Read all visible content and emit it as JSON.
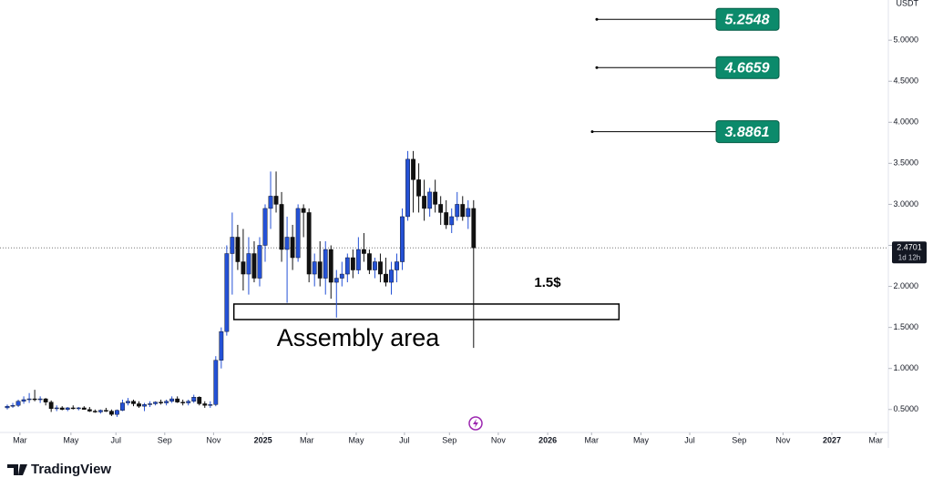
{
  "chart_data": {
    "type": "candlestick",
    "x": [
      0,
      1,
      2,
      3,
      4,
      5,
      6,
      7,
      8,
      9,
      10,
      11,
      12,
      13,
      14,
      15,
      16,
      17,
      18,
      19,
      20,
      21,
      22,
      23,
      24,
      25,
      26,
      27,
      28,
      29,
      30,
      31,
      32,
      33,
      34,
      35,
      36,
      37,
      38,
      39,
      40,
      41,
      42,
      43,
      44,
      45,
      46,
      47,
      48,
      49,
      50,
      51,
      52,
      53,
      54,
      55,
      56,
      57,
      58,
      59,
      60,
      61,
      62,
      63,
      64,
      65,
      66,
      67,
      68,
      69,
      70,
      71,
      72,
      73,
      74,
      75,
      76,
      77,
      78,
      79,
      80,
      81,
      82,
      83,
      84,
      85
    ],
    "open": [
      0.52,
      0.54,
      0.55,
      0.6,
      0.62,
      0.63,
      0.62,
      0.63,
      0.59,
      0.51,
      0.52,
      0.5,
      0.52,
      0.51,
      0.52,
      0.5,
      0.48,
      0.47,
      0.49,
      0.48,
      0.44,
      0.49,
      0.58,
      0.6,
      0.57,
      0.54,
      0.56,
      0.57,
      0.59,
      0.58,
      0.6,
      0.63,
      0.59,
      0.58,
      0.6,
      0.65,
      0.57,
      0.55,
      0.56,
      1.1,
      1.45,
      2.4,
      2.6,
      2.3,
      2.15,
      2.4,
      2.1,
      2.5,
      2.95,
      3.1,
      3.0,
      2.45,
      2.6,
      2.35,
      2.95,
      2.9,
      2.15,
      2.3,
      2.1,
      2.45,
      2.05,
      2.1,
      2.15,
      2.35,
      2.2,
      2.45,
      2.4,
      2.2,
      2.3,
      2.15,
      2.05,
      2.2,
      2.3,
      2.85,
      3.55,
      3.3,
      3.1,
      2.95,
      3.15,
      3.0,
      2.9,
      2.75,
      2.85,
      3.0,
      2.85,
      2.95
    ],
    "high": [
      0.56,
      0.58,
      0.62,
      0.66,
      0.7,
      0.74,
      0.66,
      0.64,
      0.61,
      0.55,
      0.54,
      0.53,
      0.55,
      0.53,
      0.54,
      0.53,
      0.5,
      0.5,
      0.52,
      0.5,
      0.5,
      0.62,
      0.64,
      0.62,
      0.6,
      0.58,
      0.6,
      0.6,
      0.62,
      0.62,
      0.66,
      0.66,
      0.62,
      0.62,
      0.68,
      0.66,
      0.6,
      0.6,
      1.15,
      1.5,
      2.5,
      2.9,
      2.75,
      2.7,
      2.6,
      2.55,
      2.6,
      3.0,
      3.4,
      3.4,
      3.15,
      2.85,
      2.75,
      3.0,
      3.0,
      2.95,
      2.4,
      2.55,
      2.55,
      2.5,
      2.2,
      2.3,
      2.4,
      2.45,
      2.6,
      2.65,
      2.45,
      2.35,
      2.4,
      2.35,
      2.3,
      2.4,
      2.95,
      3.65,
      3.65,
      3.5,
      3.3,
      3.2,
      3.3,
      3.1,
      3.05,
      2.95,
      3.15,
      3.1,
      3.05,
      3.05
    ],
    "low": [
      0.5,
      0.52,
      0.53,
      0.57,
      0.58,
      0.6,
      0.58,
      0.55,
      0.47,
      0.48,
      0.49,
      0.48,
      0.5,
      0.49,
      0.5,
      0.47,
      0.46,
      0.45,
      0.47,
      0.42,
      0.41,
      0.48,
      0.55,
      0.54,
      0.52,
      0.48,
      0.53,
      0.55,
      0.56,
      0.55,
      0.58,
      0.58,
      0.55,
      0.55,
      0.58,
      0.55,
      0.52,
      0.52,
      0.54,
      1.0,
      1.4,
      1.9,
      2.2,
      1.95,
      1.9,
      2.05,
      2.0,
      2.3,
      2.7,
      2.9,
      2.3,
      1.8,
      2.2,
      2.3,
      2.6,
      2.05,
      2.0,
      2.0,
      1.9,
      1.85,
      1.62,
      2.0,
      2.05,
      2.1,
      2.15,
      2.3,
      2.15,
      2.1,
      2.05,
      2.0,
      1.9,
      2.05,
      2.2,
      2.8,
      2.9,
      2.9,
      2.8,
      2.85,
      2.9,
      2.75,
      2.7,
      2.65,
      2.8,
      2.8,
      2.7,
      1.25
    ],
    "close": [
      0.54,
      0.55,
      0.6,
      0.62,
      0.63,
      0.62,
      0.63,
      0.59,
      0.51,
      0.52,
      0.5,
      0.52,
      0.51,
      0.52,
      0.5,
      0.48,
      0.47,
      0.49,
      0.48,
      0.44,
      0.49,
      0.58,
      0.6,
      0.57,
      0.54,
      0.56,
      0.57,
      0.59,
      0.58,
      0.6,
      0.63,
      0.59,
      0.58,
      0.6,
      0.65,
      0.57,
      0.55,
      0.56,
      1.1,
      1.45,
      2.4,
      2.6,
      2.3,
      2.15,
      2.4,
      2.1,
      2.5,
      2.95,
      3.1,
      3.0,
      2.45,
      2.6,
      2.35,
      2.95,
      2.9,
      2.15,
      2.3,
      2.1,
      2.45,
      2.05,
      2.1,
      2.15,
      2.35,
      2.2,
      2.45,
      2.4,
      2.2,
      2.3,
      2.15,
      2.05,
      2.2,
      2.3,
      2.85,
      3.55,
      3.3,
      3.1,
      2.95,
      3.15,
      3.0,
      2.9,
      2.75,
      2.85,
      3.0,
      2.85,
      2.95,
      2.4701
    ],
    "up_color": "#2451d6",
    "down_color": "#111111",
    "xlim": [
      -1.33,
      160.6
    ],
    "xticks": [
      {
        "value": 2.3,
        "label": "Mar"
      },
      {
        "value": 11.6,
        "label": "May"
      },
      {
        "value": 19.8,
        "label": "Jul"
      },
      {
        "value": 28.7,
        "label": "Sep"
      },
      {
        "value": 37.6,
        "label": "Nov"
      },
      {
        "value": 46.6,
        "label": "2025"
      },
      {
        "value": 54.6,
        "label": "Mar"
      },
      {
        "value": 63.6,
        "label": "May"
      },
      {
        "value": 72.4,
        "label": "Jul"
      },
      {
        "value": 80.6,
        "label": "Sep"
      },
      {
        "value": 89.5,
        "label": "Nov"
      },
      {
        "value": 98.5,
        "label": "2026"
      },
      {
        "value": 106.5,
        "label": "Mar"
      },
      {
        "value": 115.5,
        "label": "May"
      },
      {
        "value": 124.4,
        "label": "Jul"
      },
      {
        "value": 133.4,
        "label": "Sep"
      },
      {
        "value": 141.4,
        "label": "Nov"
      },
      {
        "value": 150.3,
        "label": "2027"
      },
      {
        "value": 158.3,
        "label": "Mar"
      }
    ],
    "ylim": [
      0.22,
      5.49
    ],
    "yticks": [
      {
        "value": 0.5,
        "label": "0.5000"
      },
      {
        "value": 1.0,
        "label": "1.0000"
      },
      {
        "value": 1.5,
        "label": "1.5000"
      },
      {
        "value": 2.0,
        "label": "2.0000"
      },
      {
        "value": 2.5,
        "label": "2.5000"
      },
      {
        "value": 3.0,
        "label": "3.0000"
      },
      {
        "value": 3.5,
        "label": "3.5000"
      },
      {
        "value": 4.0,
        "label": "4.0000"
      },
      {
        "value": 4.5,
        "label": "4.5000"
      },
      {
        "value": 5.0,
        "label": "5.0000"
      }
    ],
    "y_unit": "USDT",
    "last_price": {
      "value": 2.4701,
      "label": "2.4701"
    },
    "countdown": "1d 12h",
    "levels": [
      {
        "value": 5.2548,
        "label": "5.2548"
      },
      {
        "value": 4.6659,
        "label": "4.6659"
      },
      {
        "value": 3.8861,
        "label": "3.8861"
      }
    ],
    "zone": {
      "x": [
        41.3,
        111.5
      ],
      "y": [
        1.596,
        1.785
      ],
      "label": "Assembly area"
    },
    "annotation": "1.5$",
    "brand": "TradingView"
  }
}
